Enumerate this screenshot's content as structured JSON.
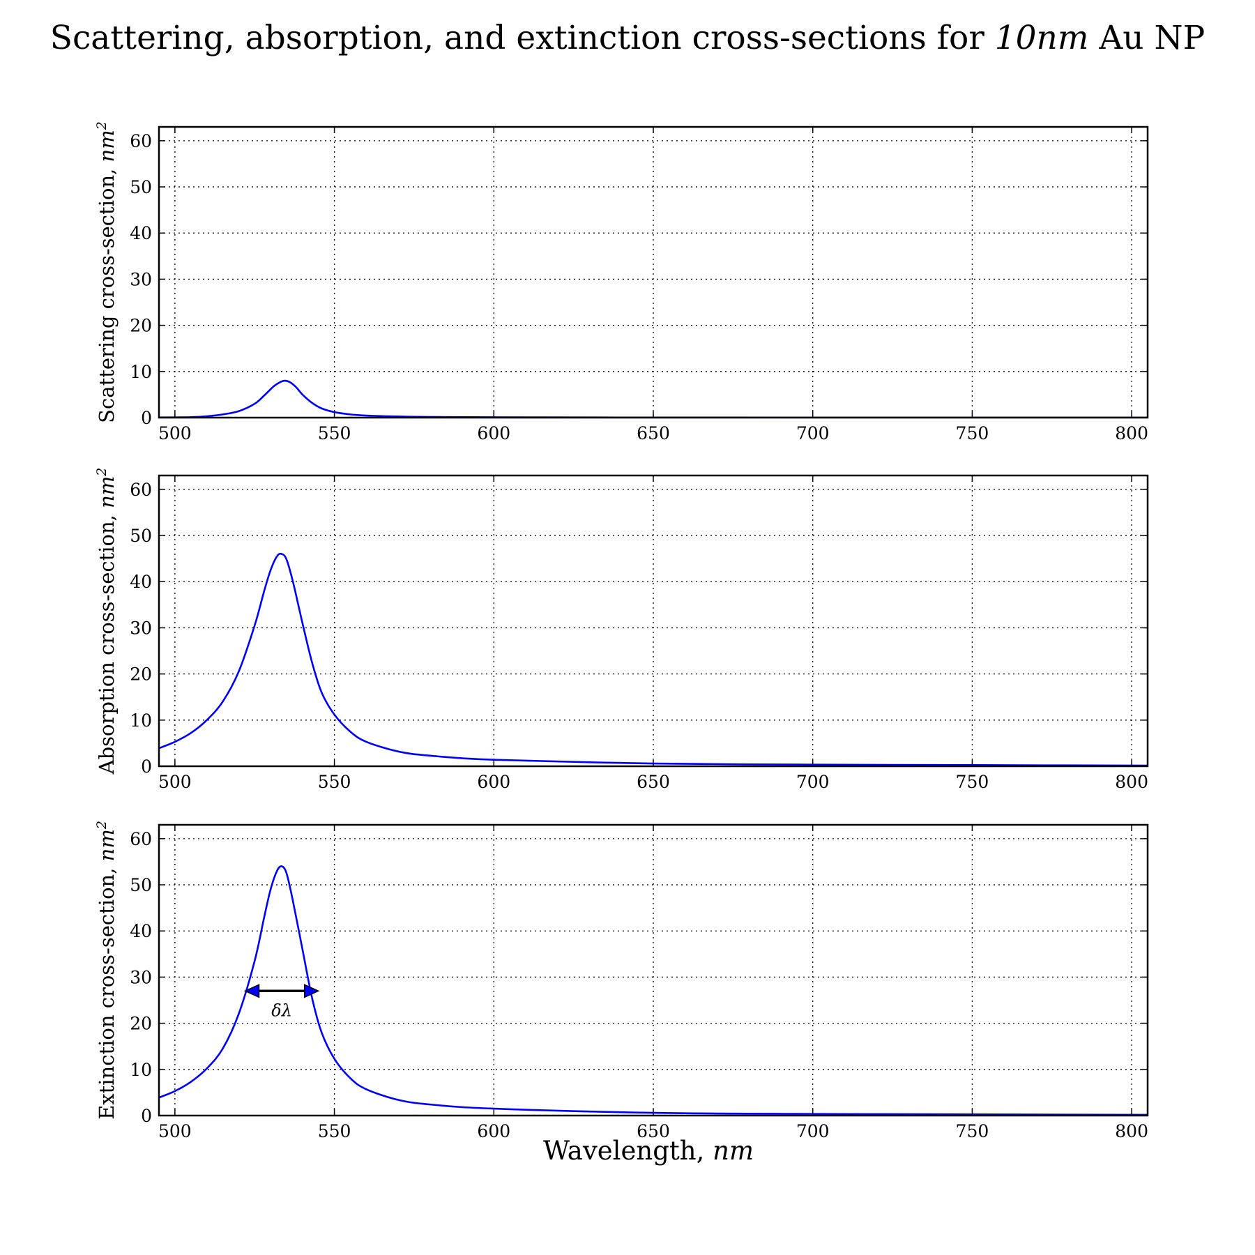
{
  "figure": {
    "title_main": "Scattering, absorption, and extinction cross-sections for ",
    "title_math": "10nm",
    "title_tail": " Au NP",
    "xlabel_main": "Wavelength, ",
    "xlabel_unit": "nm",
    "line_color": "#0000ff"
  },
  "chart_data": [
    {
      "type": "line",
      "ylabel_main": "Scattering cross-section, ",
      "ylabel_unit": "nm",
      "ylabel_exp": "2",
      "xlim": [
        495,
        805
      ],
      "ylim": [
        0,
        63
      ],
      "xticks": [
        500,
        550,
        600,
        650,
        700,
        750,
        800
      ],
      "yticks": [
        0,
        10,
        20,
        30,
        40,
        50,
        60
      ],
      "grid": true,
      "series": [
        {
          "x": [
            495,
            505,
            510,
            515,
            520,
            525,
            528,
            531,
            533,
            534.5,
            536,
            538,
            540,
            543,
            546,
            550,
            555,
            560,
            570,
            580,
            600,
            650,
            700,
            750,
            805
          ],
          "y": [
            0.05,
            0.1,
            0.3,
            0.7,
            1.4,
            3.0,
            4.8,
            6.8,
            7.7,
            8.0,
            7.7,
            6.6,
            5.0,
            3.2,
            2.0,
            1.2,
            0.7,
            0.45,
            0.25,
            0.15,
            0.08,
            0.03,
            0.02,
            0.01,
            0.01
          ]
        }
      ]
    },
    {
      "type": "line",
      "ylabel_main": "Absorption cross-section, ",
      "ylabel_unit": "nm",
      "ylabel_exp": "2",
      "xlim": [
        495,
        805
      ],
      "ylim": [
        0,
        63
      ],
      "xticks": [
        500,
        550,
        600,
        650,
        700,
        750,
        800
      ],
      "yticks": [
        0,
        10,
        20,
        30,
        40,
        50,
        60
      ],
      "grid": true,
      "series": [
        {
          "x": [
            495,
            500,
            505,
            510,
            515,
            520,
            525,
            528,
            530,
            532,
            533.5,
            535,
            537,
            540,
            543,
            546,
            550,
            555,
            560,
            570,
            580,
            600,
            650,
            700,
            750,
            805
          ],
          "y": [
            3.9,
            5.3,
            7.2,
            10.0,
            14.0,
            20.5,
            30.5,
            38.0,
            42.5,
            45.5,
            46.0,
            44.8,
            40.0,
            31.0,
            22.5,
            16.0,
            11.2,
            7.5,
            5.3,
            3.2,
            2.3,
            1.4,
            0.6,
            0.35,
            0.25,
            0.15
          ]
        }
      ]
    },
    {
      "type": "line",
      "ylabel_main": "Extinction cross-section, ",
      "ylabel_unit": "nm",
      "ylabel_exp": "2",
      "xlim": [
        495,
        805
      ],
      "ylim": [
        0,
        63
      ],
      "xticks": [
        500,
        550,
        600,
        650,
        700,
        750,
        800
      ],
      "yticks": [
        0,
        10,
        20,
        30,
        40,
        50,
        60
      ],
      "grid": true,
      "annotation": {
        "text": "δλ",
        "x_start": 522,
        "x_end": 545,
        "y": 27
      },
      "series": [
        {
          "x": [
            495,
            500,
            505,
            510,
            515,
            520,
            525,
            528,
            530,
            532,
            533.5,
            535,
            537,
            540,
            543,
            546,
            550,
            555,
            560,
            570,
            580,
            600,
            650,
            700,
            750,
            805
          ],
          "y": [
            3.9,
            5.3,
            7.3,
            10.2,
            14.5,
            22.0,
            33.5,
            43.0,
            49.0,
            53.0,
            54.0,
            52.5,
            46.5,
            36.0,
            25.5,
            18.0,
            12.3,
            8.1,
            5.7,
            3.4,
            2.4,
            1.5,
            0.6,
            0.36,
            0.26,
            0.16
          ]
        }
      ]
    }
  ]
}
